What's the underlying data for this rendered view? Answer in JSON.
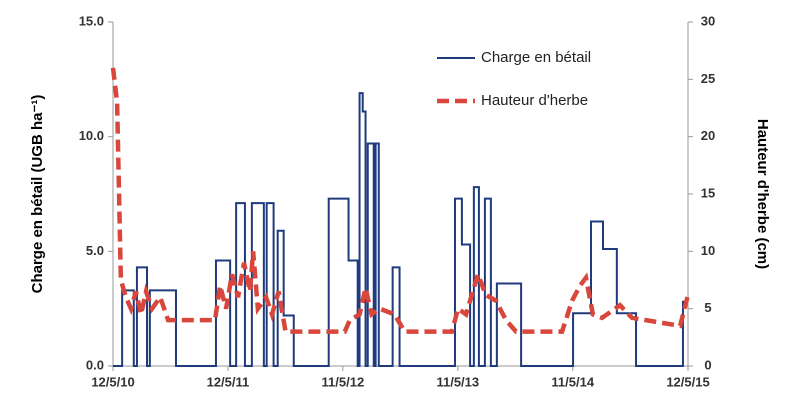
{
  "chart_data": {
    "type": "line",
    "xlabel": null,
    "ylabel": "Charge en bétail (UGB ha⁻¹)",
    "y2label": "Hauteur d'herbe (cm)",
    "xlim": [
      "2010-05-12",
      "2015-05-12"
    ],
    "xticks": [
      {
        "value": "2010-05-12",
        "label": "12/5/10"
      },
      {
        "value": "2011-05-12",
        "label": "12/5/11"
      },
      {
        "value": "2012-05-11",
        "label": "11/5/12"
      },
      {
        "value": "2013-05-11",
        "label": "11/5/13"
      },
      {
        "value": "2014-05-11",
        "label": "11/5/14"
      },
      {
        "value": "2015-05-12",
        "label": "12/5/15"
      }
    ],
    "ylim": [
      0,
      15
    ],
    "yticks": [
      {
        "value": 0,
        "label": "0.0"
      },
      {
        "value": 5,
        "label": "5.0"
      },
      {
        "value": 10,
        "label": "10.0"
      },
      {
        "value": 15,
        "label": "15.0"
      }
    ],
    "y2lim": [
      0,
      30
    ],
    "y2ticks": [
      0,
      5,
      10,
      15,
      20,
      25,
      30
    ],
    "grid": false,
    "legend": "upper right",
    "series": [
      {
        "name": "Charge en bétail",
        "color": "#1f3b7d",
        "linestyle": "solid",
        "x": [
          "2010-05-12",
          "2010-06-10",
          "2010-06-10",
          "2010-07-17",
          "2010-07-17",
          "2010-07-27",
          "2010-07-27",
          "2010-08-28",
          "2010-08-28",
          "2010-09-06",
          "2010-09-06",
          "2010-11-28",
          "2010-11-28",
          "2011-04-04",
          "2011-04-04",
          "2011-05-19",
          "2011-05-19",
          "2011-06-07",
          "2011-06-07",
          "2011-07-05",
          "2011-07-05",
          "2011-07-27",
          "2011-07-27",
          "2011-09-03",
          "2011-09-03",
          "2011-09-12",
          "2011-09-12",
          "2011-10-04",
          "2011-10-04",
          "2011-10-17",
          "2011-10-17",
          "2011-11-05",
          "2011-11-05",
          "2011-12-07",
          "2011-12-07",
          "2012-03-27",
          "2012-03-27",
          "2012-05-29",
          "2012-05-29",
          "2012-06-27",
          "2012-06-27",
          "2012-07-03",
          "2012-07-03",
          "2012-07-13",
          "2012-07-13",
          "2012-07-22",
          "2012-07-22",
          "2012-07-29",
          "2012-07-29",
          "2012-08-17",
          "2012-08-17",
          "2012-08-23",
          "2012-08-23",
          "2012-09-02",
          "2012-09-02",
          "2012-10-16",
          "2012-10-16",
          "2012-11-07",
          "2012-11-07",
          "2013-05-02",
          "2013-05-02",
          "2013-05-24",
          "2013-05-24",
          "2013-06-19",
          "2013-06-19",
          "2013-07-01",
          "2013-07-01",
          "2013-07-17",
          "2013-07-17",
          "2013-08-05",
          "2013-08-05",
          "2013-08-24",
          "2013-08-24",
          "2013-09-12",
          "2013-09-12",
          "2013-11-28",
          "2013-11-28",
          "2014-05-12",
          "2014-05-12",
          "2014-07-08",
          "2014-07-08",
          "2014-08-15",
          "2014-08-15",
          "2014-09-28",
          "2014-09-28",
          "2014-11-28",
          "2014-11-28",
          "2015-04-26",
          "2015-04-26",
          "2015-05-12"
        ],
        "values": [
          0,
          0,
          3.3,
          3.3,
          0,
          0,
          4.3,
          4.3,
          0,
          0,
          3.3,
          3.3,
          0,
          0,
          4.6,
          4.6,
          0,
          0,
          7.1,
          7.1,
          0,
          0,
          7.1,
          7.1,
          0,
          0,
          7.1,
          7.1,
          0,
          0,
          5.9,
          5.9,
          2.2,
          2.2,
          0,
          0,
          7.3,
          7.3,
          4.6,
          4.6,
          0,
          0,
          11.9,
          11.9,
          11.1,
          11.1,
          0,
          0,
          9.7,
          9.7,
          0,
          0,
          9.7,
          9.7,
          0,
          0,
          4.3,
          4.3,
          0,
          0,
          7.3,
          7.3,
          5.3,
          5.3,
          0,
          0,
          7.8,
          7.8,
          0,
          0,
          7.3,
          7.3,
          0,
          0,
          3.6,
          3.6,
          0,
          0,
          2.3,
          2.3,
          6.3,
          6.3,
          5.1,
          5.1,
          2.3,
          2.3,
          0,
          0,
          2.8,
          2.8
        ]
      },
      {
        "name": "Hauteur d'herbe",
        "color": "#d9463b",
        "linestyle": "dashed",
        "axis": "y2",
        "x": [
          "2010-05-12",
          "2010-05-25",
          "2010-06-06",
          "2010-06-22",
          "2010-07-08",
          "2010-07-24",
          "2010-08-09",
          "2010-08-25",
          "2010-09-13",
          "2010-10-09",
          "2010-11-03",
          "2011-04-01",
          "2011-04-17",
          "2011-05-06",
          "2011-05-25",
          "2011-06-13",
          "2011-07-02",
          "2011-07-21",
          "2011-07-31",
          "2011-08-15",
          "2011-09-10",
          "2011-09-29",
          "2011-10-20",
          "2011-11-11",
          "2012-05-17",
          "2012-06-02",
          "2012-07-03",
          "2012-07-22",
          "2012-08-10",
          "2012-09-05",
          "2012-10-22",
          "2012-11-23",
          "2013-04-22",
          "2013-05-12",
          "2013-06-06",
          "2013-07-14",
          "2013-08-08",
          "2013-09-09",
          "2013-10-11",
          "2013-11-12",
          "2014-04-07",
          "2014-05-09",
          "2014-06-03",
          "2014-06-22",
          "2014-07-14",
          "2014-08-12",
          "2014-10-08",
          "2014-11-15",
          "2015-04-17",
          "2015-05-12"
        ],
        "values": [
          26,
          23,
          7.5,
          6,
          5,
          6.5,
          4.5,
          6.5,
          5,
          6,
          4,
          4,
          7,
          5,
          8,
          6,
          9,
          6.5,
          10,
          5,
          6,
          4.5,
          6.5,
          3,
          3,
          4,
          4.5,
          6.8,
          4.5,
          5,
          4.5,
          3,
          3,
          5,
          4.5,
          8,
          6.2,
          5.7,
          4,
          3,
          3,
          5.7,
          7,
          7.7,
          4.5,
          4.2,
          5.3,
          4.2,
          3.5,
          6.2
        ]
      }
    ]
  }
}
